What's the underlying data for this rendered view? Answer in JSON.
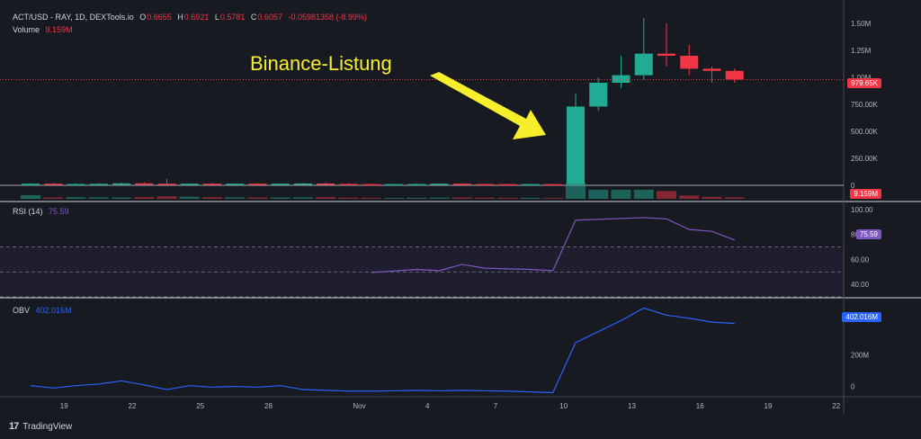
{
  "header": {
    "symbol": "ACT/USD - RAY, 1D, DEXTools.io",
    "o_label": "O",
    "o_value": "0.6655",
    "h_label": "H",
    "h_value": "0.6921",
    "l_label": "L",
    "l_value": "0.5781",
    "c_label": "C",
    "c_value": "0.6057",
    "change": "-0.05981358 (-8.99%)",
    "volume_label": "Volume",
    "volume_value": "9.159M"
  },
  "annotation": {
    "text": "Binance-Listung"
  },
  "price_axis": [
    "1.50M",
    "1.25M",
    "1.00M",
    "750.00K",
    "500.00K",
    "250.00K",
    "0"
  ],
  "price_badges": {
    "last": "979.65K",
    "volume": "9.159M"
  },
  "rsi": {
    "label": "RSI (14)",
    "value": "75.59",
    "axis": [
      "100.00",
      "80.00",
      "60.00",
      "40.00"
    ]
  },
  "obv": {
    "label": "OBV",
    "value": "402.016M",
    "axis": [
      "200M",
      "0"
    ]
  },
  "time_axis": [
    "19",
    "22",
    "25",
    "28",
    "Nov",
    "4",
    "7",
    "10",
    "13",
    "16",
    "19",
    "22"
  ],
  "branding": {
    "logo": "17",
    "name": "TradingView"
  },
  "colors": {
    "up": "#22ab94",
    "down": "#f23645",
    "rsi": "#7e57c2",
    "obv": "#2962ff",
    "annotation": "#f7ef2c",
    "background": "#181a22"
  },
  "chart_data": {
    "type": "candlestick",
    "candles": [
      {
        "date": "Oct 18",
        "o": 0,
        "h": 20000,
        "l": 0,
        "c": 15000
      },
      {
        "date": "Oct 19",
        "o": 15000,
        "h": 22000,
        "l": 5000,
        "c": 10000
      },
      {
        "date": "Oct 20",
        "o": 10000,
        "h": 18000,
        "l": 5000,
        "c": 12000
      },
      {
        "date": "Oct 21",
        "o": 12000,
        "h": 20000,
        "l": 6000,
        "c": 14000
      },
      {
        "date": "Oct 22",
        "o": 14000,
        "h": 25000,
        "l": 8000,
        "c": 18000
      },
      {
        "date": "Oct 23",
        "o": 18000,
        "h": 30000,
        "l": 10000,
        "c": 15000
      },
      {
        "date": "Oct 24",
        "o": 15000,
        "h": 60000,
        "l": 10000,
        "c": 12000
      },
      {
        "date": "Oct 25",
        "o": 12000,
        "h": 20000,
        "l": 6000,
        "c": 15000
      },
      {
        "date": "Oct 26",
        "o": 15000,
        "h": 22000,
        "l": 8000,
        "c": 13000
      },
      {
        "date": "Oct 27",
        "o": 13000,
        "h": 18000,
        "l": 8000,
        "c": 15000
      },
      {
        "date": "Oct 28",
        "o": 15000,
        "h": 20000,
        "l": 9000,
        "c": 12000
      },
      {
        "date": "Oct 29",
        "o": 12000,
        "h": 18000,
        "l": 8000,
        "c": 15000
      },
      {
        "date": "Oct 30",
        "o": 15000,
        "h": 22000,
        "l": 10000,
        "c": 17000
      },
      {
        "date": "Oct 31",
        "o": 17000,
        "h": 25000,
        "l": 10000,
        "c": 13000
      },
      {
        "date": "Nov 1",
        "o": 13000,
        "h": 18000,
        "l": 9000,
        "c": 11000
      },
      {
        "date": "Nov 2",
        "o": 11000,
        "h": 16000,
        "l": 8000,
        "c": 10000
      },
      {
        "date": "Nov 3",
        "o": 10000,
        "h": 15000,
        "l": 7000,
        "c": 11000
      },
      {
        "date": "Nov 4",
        "o": 11000,
        "h": 16000,
        "l": 8000,
        "c": 12000
      },
      {
        "date": "Nov 5",
        "o": 12000,
        "h": 18000,
        "l": 8000,
        "c": 15000
      },
      {
        "date": "Nov 6",
        "o": 15000,
        "h": 20000,
        "l": 10000,
        "c": 12000
      },
      {
        "date": "Nov 7",
        "o": 12000,
        "h": 16000,
        "l": 8000,
        "c": 11000
      },
      {
        "date": "Nov 8",
        "o": 11000,
        "h": 15000,
        "l": 8000,
        "c": 10000
      },
      {
        "date": "Nov 9",
        "o": 10000,
        "h": 14000,
        "l": 7000,
        "c": 11000
      },
      {
        "date": "Nov 10",
        "o": 11000,
        "h": 15000,
        "l": 8000,
        "c": 10000
      },
      {
        "date": "Nov 11",
        "o": 10000,
        "h": 850000,
        "l": 5000,
        "c": 730000
      },
      {
        "date": "Nov 12",
        "o": 730000,
        "h": 1000000,
        "l": 690000,
        "c": 950000
      },
      {
        "date": "Nov 13",
        "o": 950000,
        "h": 1200000,
        "l": 900000,
        "c": 1020000
      },
      {
        "date": "Nov 14",
        "o": 1020000,
        "h": 1550000,
        "l": 980000,
        "c": 1220000
      },
      {
        "date": "Nov 15",
        "o": 1220000,
        "h": 1500000,
        "l": 1100000,
        "c": 1200000
      },
      {
        "date": "Nov 16",
        "o": 1200000,
        "h": 1300000,
        "l": 1020000,
        "c": 1080000
      },
      {
        "date": "Nov 17",
        "o": 1080000,
        "h": 1100000,
        "l": 950000,
        "c": 1060000
      },
      {
        "date": "Nov 18",
        "o": 1060000,
        "h": 1080000,
        "l": 950000,
        "c": 979650
      }
    ],
    "volume": [
      22,
      8,
      10,
      9,
      8,
      11,
      15,
      13,
      10,
      9,
      8,
      8,
      9,
      11,
      7,
      6,
      5,
      6,
      7,
      8,
      7,
      6,
      6,
      5,
      100,
      56,
      56,
      56,
      48,
      20,
      12,
      9.159
    ],
    "rsi": [
      [
        15,
        49.5
      ],
      [
        17,
        52
      ],
      [
        18,
        51
      ],
      [
        19,
        56
      ],
      [
        20,
        53
      ],
      [
        22,
        52
      ],
      [
        23,
        51
      ],
      [
        24,
        91.5
      ],
      [
        27,
        93.5
      ],
      [
        28,
        92.5
      ],
      [
        29,
        84
      ],
      [
        30,
        82.5
      ],
      [
        31,
        75.59
      ]
    ],
    "obv": [
      [
        0,
        5
      ],
      [
        1,
        -10
      ],
      [
        2,
        5
      ],
      [
        3,
        15
      ],
      [
        4,
        35
      ],
      [
        5,
        10
      ],
      [
        6,
        -20
      ],
      [
        7,
        5
      ],
      [
        8,
        -5
      ],
      [
        9,
        0
      ],
      [
        10,
        -5
      ],
      [
        11,
        5
      ],
      [
        12,
        -20
      ],
      [
        13,
        -25
      ],
      [
        14,
        -30
      ],
      [
        15,
        -30
      ],
      [
        16,
        -28
      ],
      [
        17,
        -25
      ],
      [
        18,
        -28
      ],
      [
        19,
        -25
      ],
      [
        20,
        -28
      ],
      [
        21,
        -30
      ],
      [
        22,
        -35
      ],
      [
        23,
        -40
      ],
      [
        24,
        280
      ],
      [
        26,
        420
      ],
      [
        27,
        500
      ],
      [
        28,
        455
      ],
      [
        29,
        435
      ],
      [
        30,
        410
      ],
      [
        31,
        402.016
      ]
    ],
    "price_ylim": [
      0,
      1650000
    ],
    "rsi_ylim": [
      30,
      105
    ],
    "obv_ylim": [
      -60,
      560
    ],
    "rsi_bands": [
      70,
      50,
      30
    ]
  }
}
